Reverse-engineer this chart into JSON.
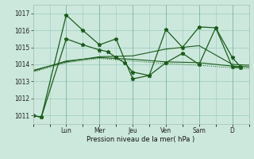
{
  "xlabel": "Pression niveau de la mer( hPa )",
  "bg_color": "#cce8dd",
  "grid_color": "#99ccbb",
  "line_color": "#1a5c1a",
  "ylim": [
    1010.5,
    1017.5
  ],
  "yticks": [
    1011,
    1012,
    1013,
    1014,
    1015,
    1016,
    1017
  ],
  "day_labels": [
    "Lun",
    "Mer",
    "Jeu",
    "Ven",
    "Sam",
    "D"
  ],
  "day_positions": [
    24,
    48,
    72,
    96,
    120,
    144
  ],
  "xlim": [
    0,
    156
  ],
  "series1_x": [
    0,
    6,
    24,
    36,
    48,
    60,
    72,
    84,
    96,
    108,
    120,
    132,
    144,
    150
  ],
  "series1_y": [
    1011.0,
    1010.9,
    1016.9,
    1016.0,
    1015.15,
    1015.5,
    1013.15,
    1013.35,
    1016.05,
    1015.0,
    1016.2,
    1016.15,
    1013.85,
    1013.8
  ],
  "series2_x": [
    0,
    6,
    24,
    36,
    48,
    54,
    60,
    66,
    72,
    84,
    96,
    108,
    120,
    132,
    144,
    150
  ],
  "series2_y": [
    1011.0,
    1010.9,
    1015.5,
    1015.15,
    1014.85,
    1014.75,
    1014.4,
    1014.1,
    1013.55,
    1013.35,
    1014.1,
    1014.65,
    1014.0,
    1016.15,
    1014.4,
    1013.85
  ],
  "series3_x": [
    0,
    24,
    48,
    72,
    96,
    120,
    144,
    156
  ],
  "series3_y": [
    1013.65,
    1014.15,
    1014.45,
    1014.5,
    1014.9,
    1015.1,
    1014.0,
    1013.95
  ],
  "series4_x": [
    0,
    24,
    48,
    72,
    96,
    120,
    144,
    156
  ],
  "series4_y": [
    1013.6,
    1014.2,
    1014.4,
    1014.3,
    1014.15,
    1014.1,
    1013.9,
    1013.85
  ],
  "series5_x": [
    0,
    24,
    48,
    72,
    96,
    120,
    144,
    156
  ],
  "series5_y": [
    1013.55,
    1014.1,
    1014.35,
    1014.2,
    1014.05,
    1013.95,
    1013.8,
    1013.75
  ]
}
